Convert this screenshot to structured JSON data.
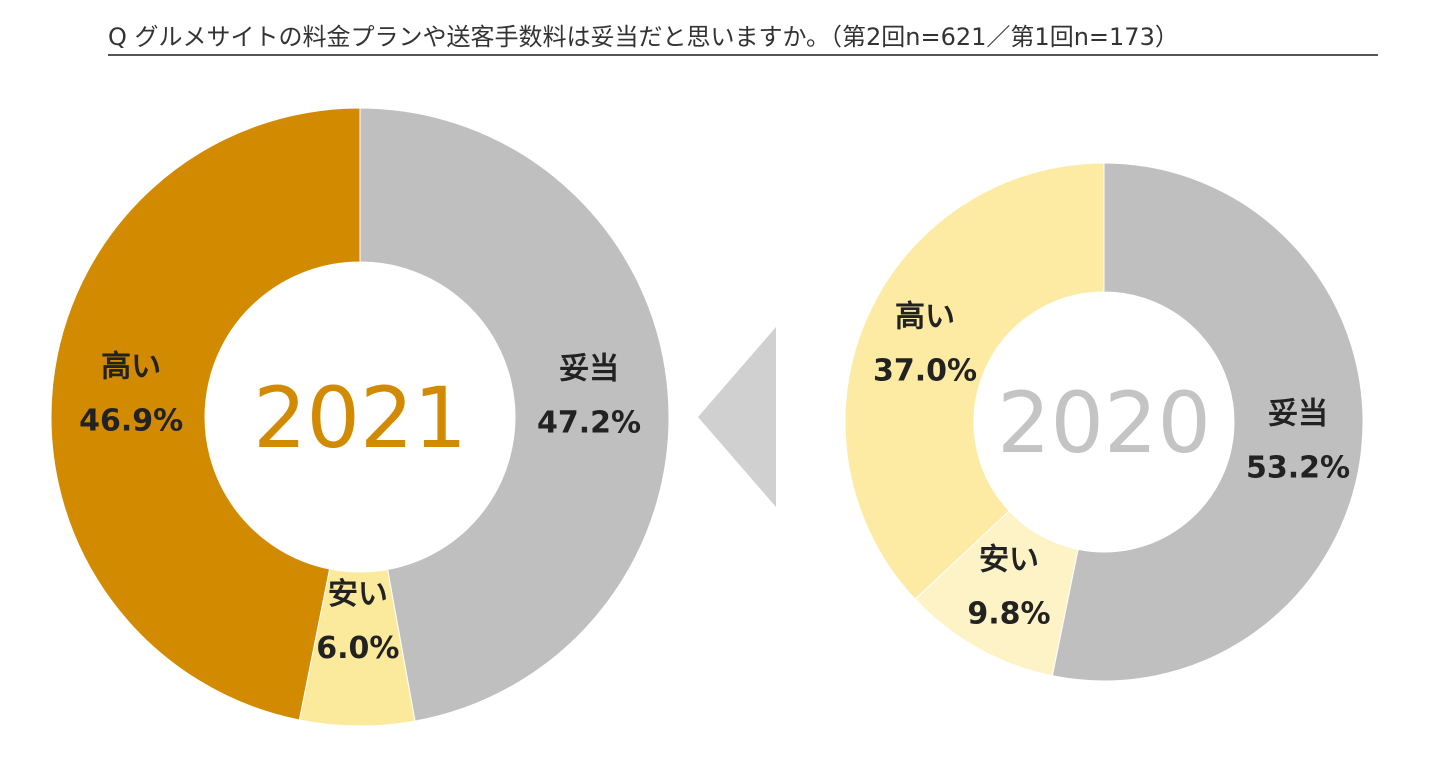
{
  "title": "Q グルメサイトの料金プランや送客手数料は妥当だと思いますか。（第2回n=621／第1回n=173）",
  "chart_data": [
    {
      "type": "pie",
      "center_label": "2021",
      "categories": [
        "妥当",
        "安い",
        "高い"
      ],
      "values": [
        47.2,
        6.0,
        46.9
      ],
      "value_labels": [
        "47.2%",
        "6.0%",
        "46.9%"
      ],
      "colors": [
        "#bfbfbf",
        "#fcea9c",
        "#d28a00"
      ],
      "center_label_color": "#d28a00"
    },
    {
      "type": "pie",
      "center_label": "2020",
      "categories": [
        "妥当",
        "安い",
        "高い"
      ],
      "values": [
        53.2,
        9.8,
        37.0
      ],
      "value_labels": [
        "53.2%",
        "9.8%",
        "37.0%"
      ],
      "colors": [
        "#bfbfbf",
        "#fdf3c6",
        "#fdeba4"
      ],
      "center_label_color": "#c4c4c4"
    }
  ],
  "arrow_color": "#d0d0d0"
}
